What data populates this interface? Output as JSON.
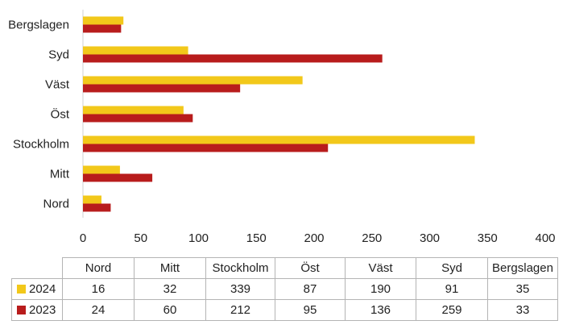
{
  "chart_data": {
    "type": "bar",
    "orientation": "horizontal",
    "categories": [
      "Nord",
      "Mitt",
      "Stockholm",
      "Öst",
      "Väst",
      "Syd",
      "Bergslagen"
    ],
    "series": [
      {
        "name": "2024",
        "color": "#f2c81a",
        "values": [
          16,
          32,
          339,
          87,
          190,
          91,
          35
        ]
      },
      {
        "name": "2023",
        "color": "#b81c1c",
        "values": [
          24,
          60,
          212,
          95,
          136,
          259,
          33
        ]
      }
    ],
    "xlim": [
      0,
      400
    ],
    "x_ticks": [
      "0",
      "50",
      "100",
      "150",
      "200",
      "250",
      "300",
      "350",
      "400"
    ],
    "legend": "data-table-below",
    "grid": false
  }
}
